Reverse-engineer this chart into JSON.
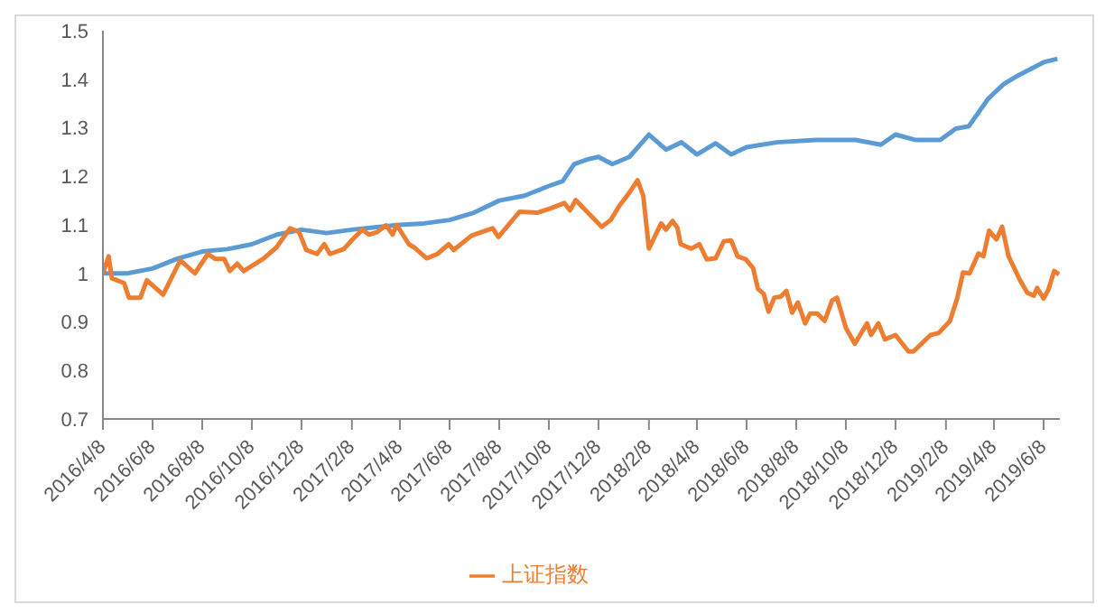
{
  "chart_data": {
    "type": "line",
    "xlim": [
      "2016-04-08",
      "2019-06-28"
    ],
    "xticks": [
      {
        "value": "2016-04-08",
        "label": "2016/4/8"
      },
      {
        "value": "2016-06-08",
        "label": "2016/6/8"
      },
      {
        "value": "2016-08-08",
        "label": "2016/8/8"
      },
      {
        "value": "2016-10-08",
        "label": "2016/10/8"
      },
      {
        "value": "2016-12-08",
        "label": "2016/12/8"
      },
      {
        "value": "2017-02-08",
        "label": "2017/2/8"
      },
      {
        "value": "2017-04-08",
        "label": "2017/4/8"
      },
      {
        "value": "2017-06-08",
        "label": "2017/6/8"
      },
      {
        "value": "2017-08-08",
        "label": "2017/8/8"
      },
      {
        "value": "2017-10-08",
        "label": "2017/10/8"
      },
      {
        "value": "2017-12-08",
        "label": "2017/12/8"
      },
      {
        "value": "2018-02-08",
        "label": "2018/2/8"
      },
      {
        "value": "2018-04-08",
        "label": "2018/4/8"
      },
      {
        "value": "2018-06-08",
        "label": "2018/6/8"
      },
      {
        "value": "2018-08-08",
        "label": "2018/8/8"
      },
      {
        "value": "2018-10-08",
        "label": "2018/10/8"
      },
      {
        "value": "2018-12-08",
        "label": "2018/12/8"
      },
      {
        "value": "2019-02-08",
        "label": "2019/2/8"
      },
      {
        "value": "2019-04-08",
        "label": "2019/4/8"
      },
      {
        "value": "2019-06-08",
        "label": "2019/6/8"
      }
    ],
    "ylim": [
      0.7,
      1.5
    ],
    "yticks": [
      0.7,
      0.8,
      0.9,
      1,
      1.1,
      1.2,
      1.3,
      1.4,
      1.5
    ],
    "grid": false,
    "legend": "bottom",
    "marker": "none",
    "line_style": "solid",
    "series": [
      {
        "color": "#5b9bd5",
        "x": [
          "2016-04-08",
          "2016-05-08",
          "2016-06-08",
          "2016-07-08",
          "2016-08-08",
          "2016-09-08",
          "2016-10-08",
          "2016-11-08",
          "2016-12-08",
          "2017-01-08",
          "2017-02-08",
          "2017-03-08",
          "2017-04-08",
          "2017-05-08",
          "2017-06-08",
          "2017-07-08",
          "2017-08-08",
          "2017-09-08",
          "2017-10-08",
          "2017-10-25",
          "2017-11-08",
          "2017-11-25",
          "2017-12-08",
          "2017-12-25",
          "2018-01-15",
          "2018-02-08",
          "2018-03-01",
          "2018-03-20",
          "2018-04-08",
          "2018-05-01",
          "2018-05-20",
          "2018-06-08",
          "2018-07-15",
          "2018-09-01",
          "2018-10-20",
          "2018-11-20",
          "2018-12-08",
          "2019-01-01",
          "2019-02-01",
          "2019-02-20",
          "2019-03-08",
          "2019-04-01",
          "2019-04-20",
          "2019-05-08",
          "2019-06-08",
          "2019-06-25"
        ],
        "values": [
          1.0,
          1.0,
          1.01,
          1.03,
          1.045,
          1.05,
          1.06,
          1.08,
          1.09,
          1.083,
          1.09,
          1.095,
          1.1,
          1.103,
          1.11,
          1.125,
          1.15,
          1.16,
          1.18,
          1.19,
          1.225,
          1.235,
          1.24,
          1.225,
          1.24,
          1.286,
          1.255,
          1.27,
          1.245,
          1.268,
          1.245,
          1.26,
          1.27,
          1.275,
          1.275,
          1.265,
          1.286,
          1.275,
          1.275,
          1.298,
          1.303,
          1.36,
          1.39,
          1.408,
          1.435,
          1.442
        ]
      },
      {
        "name": "上证指数",
        "color": "#ed7d31",
        "x": [
          "2016-04-08",
          "2016-04-15",
          "2016-04-19",
          "2016-05-04",
          "2016-05-10",
          "2016-05-24",
          "2016-06-01",
          "2016-06-21",
          "2016-07-12",
          "2016-07-30",
          "2016-08-15",
          "2016-08-24",
          "2016-09-04",
          "2016-09-11",
          "2016-09-20",
          "2016-09-28",
          "2016-10-22",
          "2016-11-07",
          "2016-11-24",
          "2016-12-05",
          "2016-12-14",
          "2016-12-27",
          "2017-01-05",
          "2017-01-12",
          "2017-01-29",
          "2017-02-10",
          "2017-02-21",
          "2017-03-01",
          "2017-03-11",
          "2017-03-22",
          "2017-03-30",
          "2017-04-04",
          "2017-04-19",
          "2017-04-26",
          "2017-05-11",
          "2017-05-24",
          "2017-06-07",
          "2017-06-13",
          "2017-07-05",
          "2017-07-31",
          "2017-08-07",
          "2017-09-02",
          "2017-09-24",
          "2017-10-12",
          "2017-10-27",
          "2017-11-03",
          "2017-11-10",
          "2017-11-25",
          "2017-12-12",
          "2017-12-23",
          "2018-01-03",
          "2018-01-14",
          "2018-01-25",
          "2018-02-01",
          "2018-02-08",
          "2018-02-23",
          "2018-03-01",
          "2018-03-09",
          "2018-03-15",
          "2018-03-19",
          "2018-04-01",
          "2018-04-11",
          "2018-04-20",
          "2018-05-01",
          "2018-05-11",
          "2018-05-20",
          "2018-05-28",
          "2018-06-07",
          "2018-06-16",
          "2018-06-22",
          "2018-06-29",
          "2018-07-05",
          "2018-07-12",
          "2018-07-20",
          "2018-07-27",
          "2018-08-03",
          "2018-08-10",
          "2018-08-19",
          "2018-08-25",
          "2018-09-03",
          "2018-09-12",
          "2018-09-21",
          "2018-09-27",
          "2018-10-08",
          "2018-10-19",
          "2018-11-03",
          "2018-11-08",
          "2018-11-17",
          "2018-11-25",
          "2018-12-08",
          "2018-12-24",
          "2018-12-30",
          "2019-01-20",
          "2019-01-30",
          "2019-02-13",
          "2019-02-22",
          "2019-03-01",
          "2019-03-09",
          "2019-03-20",
          "2019-03-26",
          "2019-04-02",
          "2019-04-11",
          "2019-04-18",
          "2019-04-26",
          "2019-05-10",
          "2019-05-19",
          "2019-05-27",
          "2019-05-31",
          "2019-06-08",
          "2019-06-14",
          "2019-06-21",
          "2019-06-27"
        ],
        "values": [
          1.0,
          1.035,
          0.99,
          0.98,
          0.95,
          0.95,
          0.986,
          0.956,
          1.027,
          1.0,
          1.04,
          1.03,
          1.03,
          1.005,
          1.02,
          1.005,
          1.03,
          1.053,
          1.093,
          1.085,
          1.048,
          1.04,
          1.06,
          1.04,
          1.05,
          1.072,
          1.09,
          1.08,
          1.085,
          1.099,
          1.08,
          1.1,
          1.06,
          1.053,
          1.031,
          1.04,
          1.06,
          1.048,
          1.078,
          1.093,
          1.075,
          1.127,
          1.125,
          1.135,
          1.145,
          1.13,
          1.151,
          1.125,
          1.096,
          1.11,
          1.14,
          1.164,
          1.192,
          1.16,
          1.051,
          1.103,
          1.09,
          1.108,
          1.094,
          1.06,
          1.051,
          1.06,
          1.029,
          1.031,
          1.066,
          1.068,
          1.035,
          1.029,
          1.011,
          0.968,
          0.958,
          0.921,
          0.95,
          0.952,
          0.964,
          0.919,
          0.94,
          0.897,
          0.917,
          0.917,
          0.902,
          0.944,
          0.95,
          0.888,
          0.855,
          0.897,
          0.873,
          0.897,
          0.864,
          0.873,
          0.839,
          0.839,
          0.873,
          0.877,
          0.902,
          0.95,
          1.002,
          1.0,
          1.041,
          1.035,
          1.088,
          1.07,
          1.096,
          1.035,
          0.986,
          0.96,
          0.954,
          0.97,
          0.948,
          0.967,
          1.005,
          0.998
        ]
      }
    ]
  }
}
